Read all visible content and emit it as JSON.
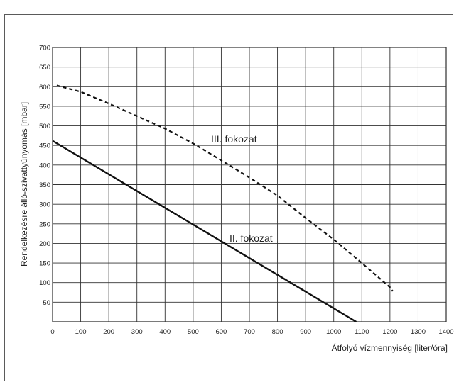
{
  "chart_data": {
    "type": "line",
    "title": "",
    "xlabel": "Átfolyó vízmennyiség [liter/óra]",
    "ylabel": "Rendelkezésre álló-szivattyúnyomás  [mbar]",
    "xlim": [
      0,
      1400
    ],
    "ylim": [
      0,
      700
    ],
    "x_ticks": [
      "0",
      "100",
      "200",
      "300",
      "400",
      "500",
      "600",
      "700",
      "800",
      "900",
      "1000",
      "1100",
      "1200",
      "1300",
      "1400"
    ],
    "y_ticks": [
      "50",
      "100",
      "150",
      "200",
      "250",
      "300",
      "350",
      "400",
      "450",
      "500",
      "550",
      "600",
      "650",
      "700"
    ],
    "grid": true,
    "series": [
      {
        "name": "III. fokozat",
        "style": "dashed",
        "color": "#111111",
        "x": [
          15,
          100,
          200,
          300,
          400,
          500,
          600,
          700,
          800,
          900,
          1000,
          1100,
          1200,
          1210
        ],
        "y": [
          603,
          587,
          557,
          525,
          493,
          455,
          412,
          368,
          322,
          265,
          210,
          150,
          88,
          78
        ]
      },
      {
        "name": "II. fokozat",
        "style": "solid",
        "color": "#111111",
        "x": [
          0,
          1080
        ],
        "y": [
          462,
          0
        ]
      }
    ]
  }
}
